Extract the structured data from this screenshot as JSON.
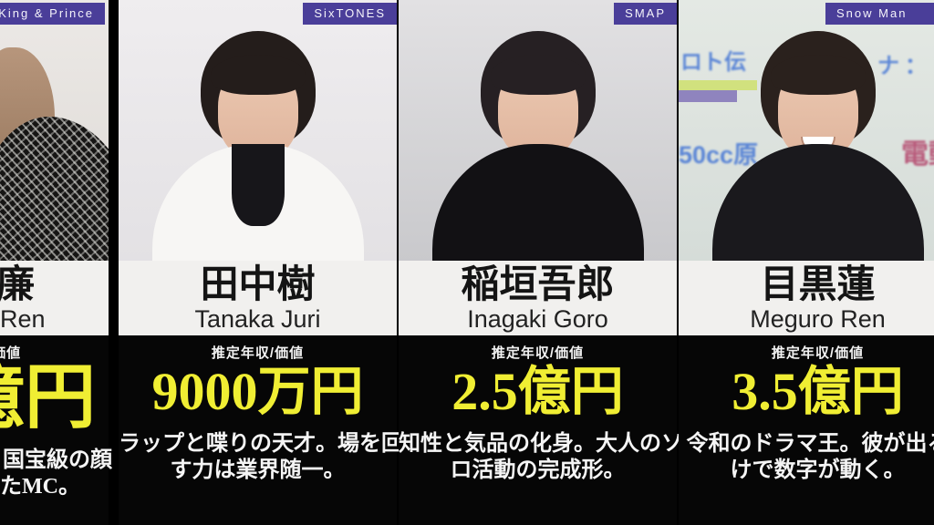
{
  "page": {
    "background": "#000000",
    "accent_yellow": "#f0ee33",
    "tag_purple": "#4a3e99",
    "income_label": "推定年収/価値"
  },
  "columns": [
    {
      "group": "King & Prince",
      "name_visible": "廉",
      "romaji_visible": "Ren",
      "amount_visible": "億円",
      "desc_lines": [
        "国宝級の顔",
        "たMC。"
      ],
      "note_partial": "left-clipped column"
    },
    {
      "group": "SixTONES",
      "name": "田中樹",
      "romaji": "Tanaka Juri",
      "amount": "9000万円",
      "desc_lines": [
        "ラップと喋りの天才。場を回",
        "す力は業界随一。"
      ]
    },
    {
      "group": "SMAP",
      "name": "稲垣吾郎",
      "romaji": "Inagaki Goro",
      "amount": "2.5億円",
      "desc_lines": [
        "知性と気品の化身。大人のソ",
        "ロ活動の完成形。"
      ]
    },
    {
      "group": "Snow Man",
      "name": "目黒蓮",
      "romaji": "Meguro Ren",
      "amount": "3.5億円",
      "desc_lines": [
        "令和のドラマ王。彼が出る",
        "けで数字が動く。"
      ],
      "backdrop_text": [
        "ロト伝",
        "ナ：",
        "50cc原",
        "電動"
      ]
    }
  ]
}
